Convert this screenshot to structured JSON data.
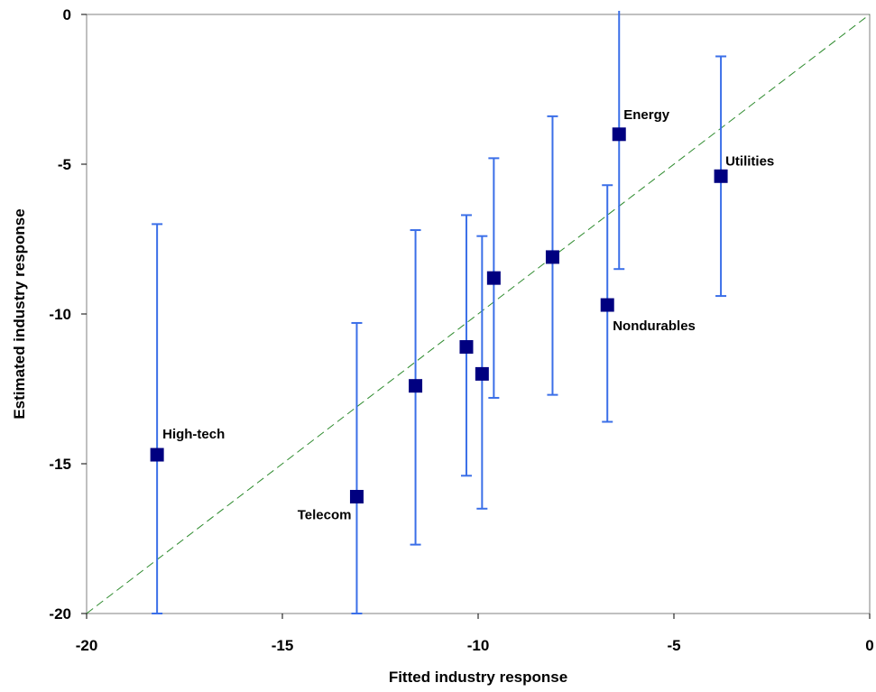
{
  "chart_data": {
    "type": "scatter",
    "title": "",
    "xlabel": "Fitted industry response",
    "ylabel": "Estimated industry response",
    "xlim": [
      -20,
      0
    ],
    "ylim": [
      -20,
      0
    ],
    "x_ticks": [
      "-20",
      "-15",
      "-10",
      "-5",
      "0"
    ],
    "y_ticks": [
      "0",
      "-5",
      "-10",
      "-15",
      "-20"
    ],
    "grid": false,
    "legend": "none",
    "reference_line": {
      "style": "dashed",
      "color": "#2e8b2e",
      "from": [
        -20,
        -20
      ],
      "to": [
        0,
        0
      ]
    },
    "colors": {
      "marker": "#000080",
      "error_bar": "#3b6fe8",
      "frame": "#808080"
    },
    "points": [
      {
        "x": -18.2,
        "y": -14.7,
        "err_low": -20.0,
        "err_high": -7.0,
        "label": "High-tech"
      },
      {
        "x": -13.1,
        "y": -16.1,
        "err_low": -20.0,
        "err_high": -10.3,
        "label": "Telecom"
      },
      {
        "x": -11.6,
        "y": -12.4,
        "err_low": -17.7,
        "err_high": -7.2,
        "label": ""
      },
      {
        "x": -10.3,
        "y": -11.1,
        "err_low": -15.4,
        "err_high": -6.7,
        "label": ""
      },
      {
        "x": -9.9,
        "y": -12.0,
        "err_low": -16.5,
        "err_high": -7.4,
        "label": ""
      },
      {
        "x": -9.6,
        "y": -8.8,
        "err_low": -12.8,
        "err_high": -4.8,
        "label": ""
      },
      {
        "x": -8.1,
        "y": -8.1,
        "err_low": -12.7,
        "err_high": -3.4,
        "label": ""
      },
      {
        "x": -6.7,
        "y": -9.7,
        "err_low": -13.6,
        "err_high": -5.7,
        "label": "Nondurables"
      },
      {
        "x": -6.4,
        "y": -4.0,
        "err_low": -8.5,
        "err_high": 0.2,
        "label": "Energy"
      },
      {
        "x": -3.8,
        "y": -5.4,
        "err_low": -9.4,
        "err_high": -1.4,
        "label": "Utilities"
      }
    ]
  }
}
